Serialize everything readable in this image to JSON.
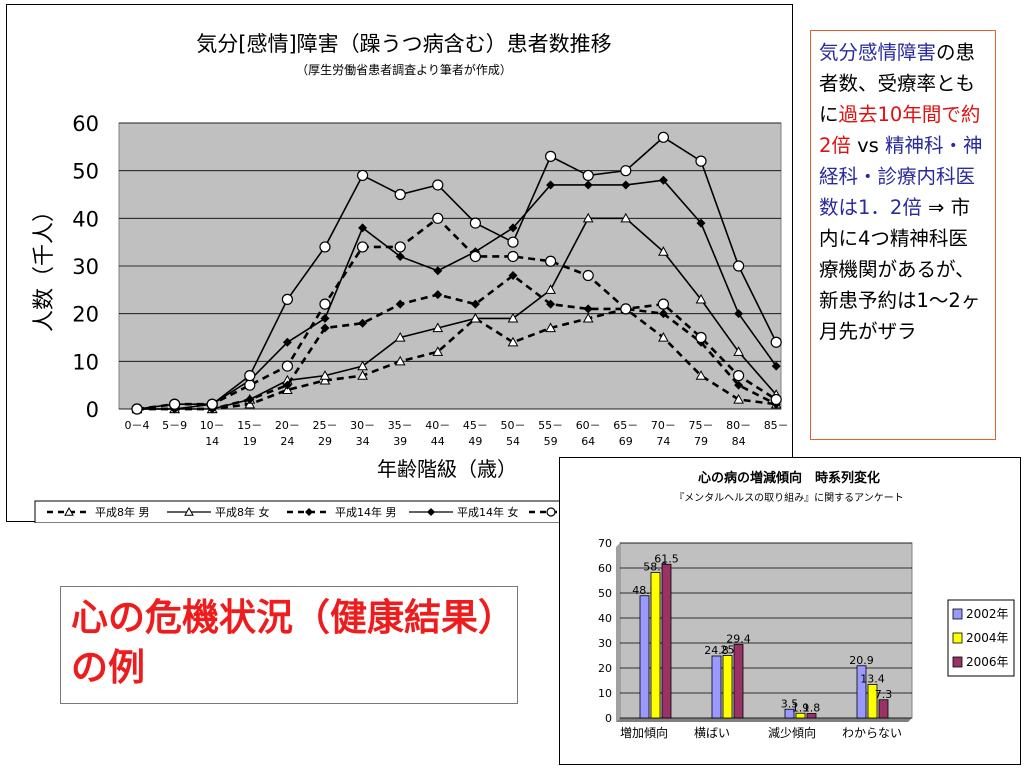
{
  "chart_data": [
    {
      "type": "line",
      "title": "気分[感情]障害（躁うつ病含む）患者数推移",
      "subtitle": "（厚生労働省患者調査より筆者が作成）",
      "xlabel": "年齢階級（歳）",
      "ylabel": "人数（千人）",
      "ylim": [
        0,
        60
      ],
      "yticks": [
        "0",
        "10",
        "20",
        "30",
        "40",
        "50",
        "60"
      ],
      "grid": true,
      "categories": [
        [
          "0－4",
          ""
        ],
        [
          "5－9",
          ""
        ],
        [
          "10－",
          "14"
        ],
        [
          "15－",
          "19"
        ],
        [
          "20－",
          "24"
        ],
        [
          "25－",
          "29"
        ],
        [
          "30－",
          "34"
        ],
        [
          "35－",
          "39"
        ],
        [
          "40－",
          "44"
        ],
        [
          "45－",
          "49"
        ],
        [
          "50－",
          "54"
        ],
        [
          "55－",
          "59"
        ],
        [
          "60－",
          "64"
        ],
        [
          "65－",
          "69"
        ],
        [
          "70－",
          "74"
        ],
        [
          "75－",
          "79"
        ],
        [
          "80－",
          "84"
        ],
        [
          "85－",
          ""
        ]
      ],
      "legend_position": "bottom",
      "series": [
        {
          "name": "平成8年 男",
          "legend_label": "平成8年 男",
          "dash": true,
          "marker": "triangle",
          "values": [
            0,
            0,
            0,
            1,
            4,
            6,
            7,
            10,
            12,
            19,
            14,
            17,
            19,
            21,
            15,
            7,
            2,
            1
          ]
        },
        {
          "name": "平成8年 女",
          "legend_label": "平成8年 女",
          "dash": false,
          "marker": "triangle",
          "values": [
            0,
            0,
            0,
            2,
            6,
            7,
            9,
            15,
            17,
            19,
            19,
            25,
            40,
            40,
            33,
            23,
            12,
            3
          ]
        },
        {
          "name": "平成14年 男",
          "legend_label": "平成14年 男",
          "dash": true,
          "marker": "diamond",
          "values": [
            0,
            0,
            0,
            2,
            5,
            17,
            18,
            22,
            24,
            22,
            28,
            22,
            21,
            21,
            20,
            14,
            5,
            1
          ]
        },
        {
          "name": "平成14年 女",
          "legend_label": "平成14年 女",
          "dash": false,
          "marker": "diamond",
          "values": [
            0,
            0,
            1,
            6,
            14,
            19,
            38,
            32,
            29,
            33,
            38,
            47,
            47,
            47,
            48,
            39,
            20,
            9
          ]
        },
        {
          "name": "",
          "legend_label": "",
          "dash": true,
          "marker": "circle",
          "values": [
            0,
            1,
            1,
            5,
            9,
            22,
            34,
            34,
            40,
            32,
            32,
            31,
            28,
            21,
            22,
            15,
            7,
            2
          ]
        },
        {
          "name": "",
          "legend_label": "",
          "dash": false,
          "marker": "circle",
          "values": [
            0,
            1,
            1,
            7,
            23,
            34,
            49,
            45,
            47,
            39,
            35,
            53,
            49,
            50,
            57,
            52,
            30,
            14
          ]
        }
      ]
    },
    {
      "type": "bar",
      "title": "心の病の増減傾向　時系列変化",
      "subtitle": "『メンタルヘルスの取り組み』に関するアンケート",
      "categories": [
        "増加傾向",
        "横ばい",
        "減少傾向",
        "わからない"
      ],
      "ylim": [
        0,
        70
      ],
      "yticks": [
        "0",
        "10",
        "20",
        "30",
        "40",
        "50",
        "60",
        "70"
      ],
      "grid": true,
      "legend_position": "right",
      "series": [
        {
          "name": "2002年",
          "color": "#9999ff",
          "values": [
            48.9,
            24.8,
            3.5,
            20.9
          ],
          "labels": [
            "48.9",
            "24.8",
            "3.5",
            "20.9"
          ]
        },
        {
          "name": "2004年",
          "color": "#ffff00",
          "values": [
            58.2,
            25,
            1.9,
            13.4
          ],
          "labels": [
            "58.2",
            "25",
            "1.9",
            "13.4"
          ]
        },
        {
          "name": "2006年",
          "color": "#993366",
          "values": [
            61.5,
            29.4,
            1.8,
            7.3
          ],
          "labels": [
            "61.5",
            "29.4",
            "1.8",
            "7.3"
          ]
        }
      ]
    }
  ],
  "note": {
    "line1": "気分感情障害",
    "line2a": "の患者数、受療率ともに",
    "line2b": "過去10年間で約2倍",
    "line3a": " vs ",
    "line3b": "精神科・神経科・診療内科医数は1．2倍",
    "line4": " ⇒ 市内に4つ精神科医療機関があるが、新患予約は1～2ヶ月先がザラ"
  },
  "caption": "心の危機状況（健康結果）の例"
}
